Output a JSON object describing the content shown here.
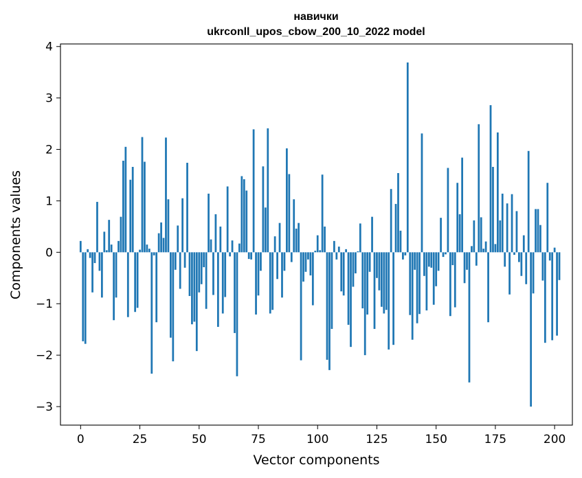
{
  "chart_data": {
    "type": "bar",
    "title": "навички",
    "subtitle": "ukrconll_upos_cbow_200_10_2022 model",
    "xlabel": "Vector components",
    "ylabel": "Components values",
    "xlim": [
      -8.5,
      207.5
    ],
    "ylim": [
      -3.36,
      4.05
    ],
    "xticks": [
      0,
      25,
      50,
      75,
      100,
      125,
      150,
      175,
      200
    ],
    "yticks": [
      -3,
      -2,
      -1,
      0,
      1,
      2,
      3,
      4
    ],
    "grid": false,
    "bar_color": "#1f77b4",
    "values": [
      0.22,
      -1.73,
      -1.78,
      0.06,
      -0.11,
      -0.78,
      -0.21,
      0.98,
      -0.36,
      -0.88,
      0.4,
      0.04,
      0.63,
      0.15,
      -1.32,
      -0.88,
      0.22,
      0.69,
      1.78,
      2.05,
      -1.26,
      1.41,
      1.66,
      -1.16,
      -1.08,
      0.05,
      2.24,
      1.76,
      0.15,
      0.07,
      -2.36,
      -0.06,
      -1.36,
      0.37,
      0.58,
      0.28,
      2.23,
      1.03,
      -1.66,
      -2.12,
      -0.34,
      0.52,
      -0.71,
      1.05,
      -0.3,
      1.74,
      -0.85,
      -1.4,
      -1.35,
      -1.92,
      -0.78,
      -0.62,
      -0.29,
      -1.1,
      1.14,
      0.25,
      -0.83,
      0.74,
      -1.45,
      0.5,
      -1.19,
      -0.87,
      1.28,
      -0.08,
      0.23,
      -1.57,
      -2.41,
      0.17,
      1.48,
      1.42,
      1.2,
      -0.13,
      -0.14,
      2.39,
      -1.21,
      -0.84,
      -0.36,
      1.67,
      0.87,
      2.41,
      -1.19,
      -1.12,
      0.31,
      -0.52,
      0.57,
      -0.88,
      -0.36,
      2.02,
      1.52,
      -0.19,
      1.03,
      0.46,
      0.57,
      -2.1,
      -0.57,
      -0.38,
      -0.14,
      -0.45,
      -1.03,
      0.03,
      0.33,
      0.04,
      1.51,
      0.5,
      -2.09,
      -2.29,
      -1.49,
      0.22,
      -0.14,
      0.11,
      -0.76,
      -0.84,
      0.06,
      -1.41,
      -1.84,
      -0.67,
      -0.41,
      0.02,
      0.56,
      -1.09,
      -2.0,
      -1.21,
      -0.38,
      0.69,
      -1.49,
      -0.5,
      -0.74,
      -1.06,
      -1.19,
      -1.12,
      -1.89,
      1.23,
      -1.8,
      0.94,
      1.54,
      0.42,
      -0.14,
      -0.06,
      3.69,
      -1.22,
      -1.7,
      -0.34,
      -1.38,
      -1.2,
      2.31,
      -0.46,
      -1.13,
      -0.28,
      -0.3,
      -1.02,
      -0.66,
      -0.36,
      0.67,
      -0.09,
      -0.04,
      1.64,
      -1.24,
      -0.25,
      -1.07,
      1.35,
      0.74,
      1.84,
      -0.6,
      -0.34,
      -2.53,
      0.12,
      0.62,
      -0.26,
      2.49,
      0.68,
      0.07,
      0.21,
      -1.36,
      2.86,
      1.66,
      0.16,
      2.33,
      0.62,
      1.14,
      -0.28,
      0.95,
      -0.82,
      1.13,
      -0.05,
      0.8,
      -0.19,
      -0.46,
      0.33,
      -0.62,
      1.97,
      -3.0,
      -0.8,
      0.84,
      0.84,
      0.53,
      -0.55,
      -1.76,
      1.35,
      -0.16,
      -1.71,
      0.09,
      -1.62,
      -0.54
    ]
  }
}
